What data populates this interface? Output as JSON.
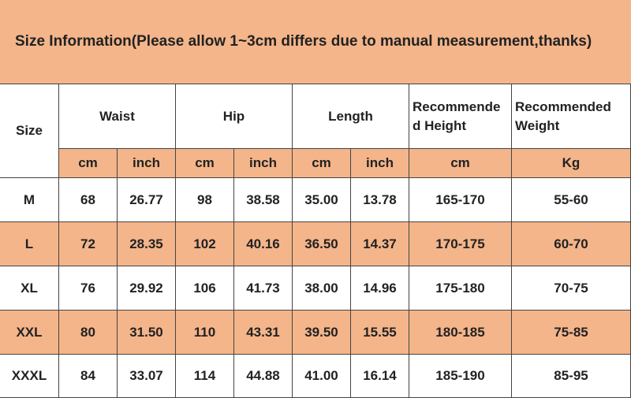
{
  "title": "Size Information(Please allow 1~3cm differs due to manual measurement,thanks)",
  "table": {
    "size_header": "Size",
    "groups": [
      "Waist",
      "Hip",
      "Length",
      "Recommended Height",
      "Recommended Weight"
    ],
    "units": [
      "cm",
      "inch",
      "cm",
      "inch",
      "cm",
      "inch",
      "cm",
      "Kg"
    ],
    "rows": [
      [
        "M",
        "68",
        "26.77",
        "98",
        "38.58",
        "35.00",
        "13.78",
        "165-170",
        "55-60"
      ],
      [
        "L",
        "72",
        "28.35",
        "102",
        "40.16",
        "36.50",
        "14.37",
        "170-175",
        "60-70"
      ],
      [
        "XL",
        "76",
        "29.92",
        "106",
        "41.73",
        "38.00",
        "14.96",
        "175-180",
        "70-75"
      ],
      [
        "XXL",
        "80",
        "31.50",
        "110",
        "43.31",
        "39.50",
        "15.55",
        "180-185",
        "75-85"
      ],
      [
        "XXXL",
        "84",
        "33.07",
        "114",
        "44.88",
        "41.00",
        "16.14",
        "185-190",
        "85-95"
      ]
    ]
  }
}
